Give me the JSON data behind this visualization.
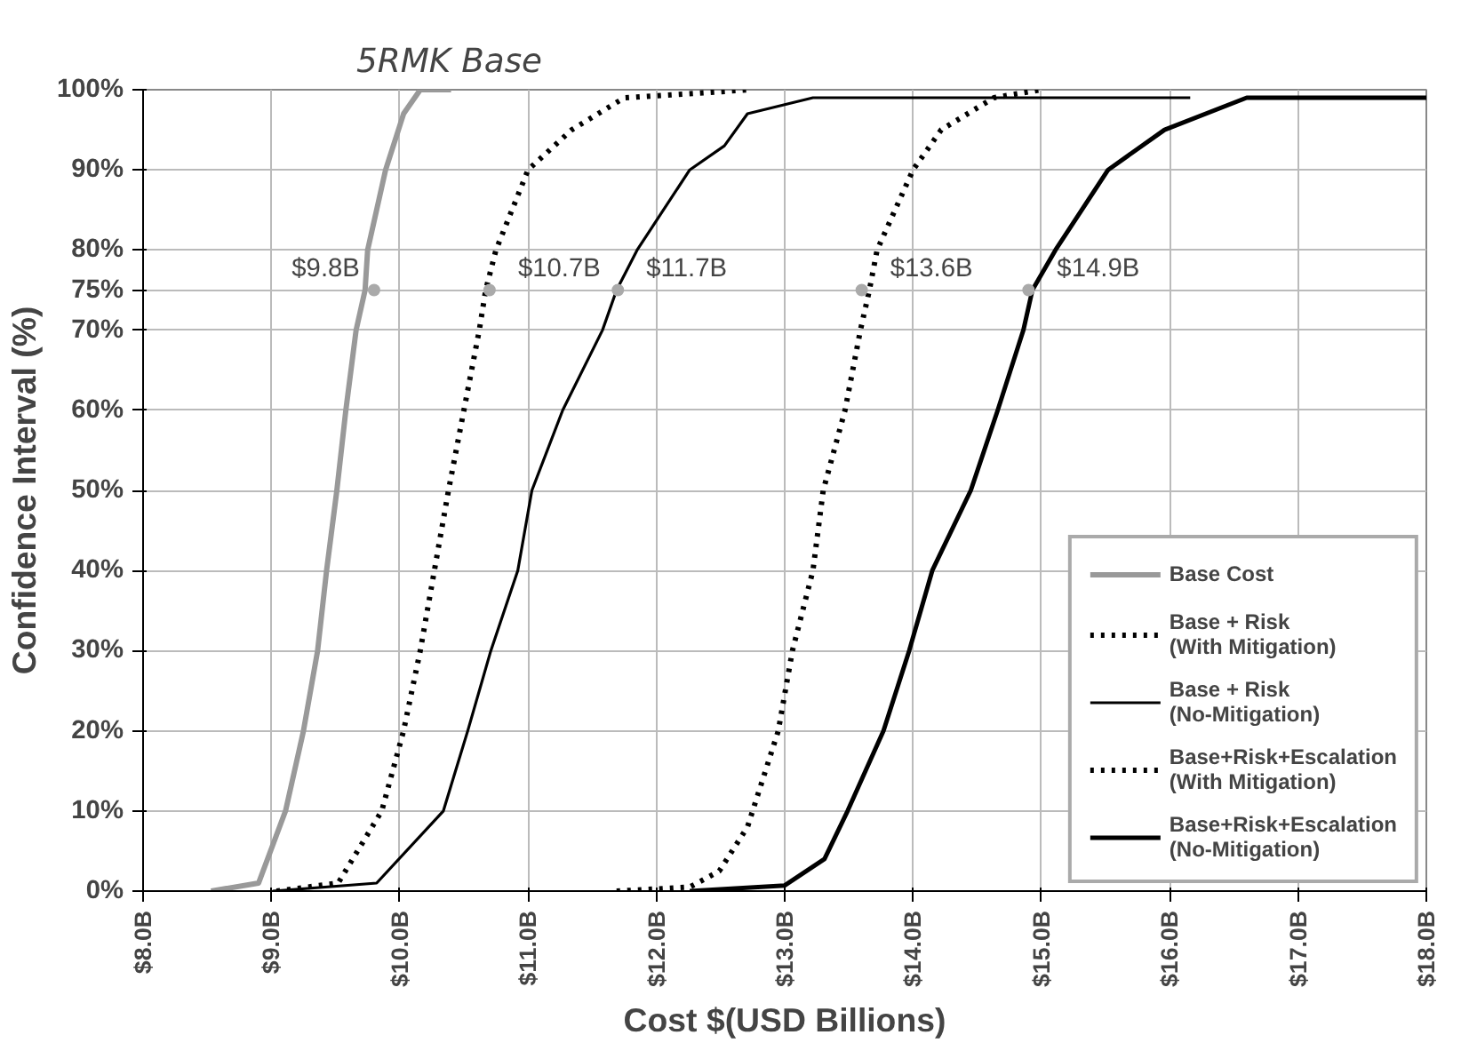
{
  "chart_data": {
    "type": "line",
    "xlabel": "Cost $(USD Billions)",
    "ylabel": "Confidence Interval (%)",
    "xlim": [
      8.0,
      18.0
    ],
    "ylim": [
      0,
      100
    ],
    "xticks": [
      {
        "value": 8,
        "label": "$8.0B"
      },
      {
        "value": 9,
        "label": "$9.0B"
      },
      {
        "value": 10,
        "label": "$10.0B"
      },
      {
        "value": 11,
        "label": "$11.0B"
      },
      {
        "value": 12,
        "label": "$12.0B"
      },
      {
        "value": 13,
        "label": "$13.0B"
      },
      {
        "value": 14,
        "label": "$14.0B"
      },
      {
        "value": 15,
        "label": "$15.0B"
      },
      {
        "value": 16,
        "label": "$16.0B"
      },
      {
        "value": 17,
        "label": "$17.0B"
      },
      {
        "value": 18,
        "label": "$18.0B"
      }
    ],
    "yticks": [
      {
        "value": 0,
        "label": "0%"
      },
      {
        "value": 10,
        "label": "10%"
      },
      {
        "value": 20,
        "label": "20%"
      },
      {
        "value": 30,
        "label": "30%"
      },
      {
        "value": 40,
        "label": "40%"
      },
      {
        "value": 50,
        "label": "50%"
      },
      {
        "value": 60,
        "label": "60%"
      },
      {
        "value": 70,
        "label": "70%"
      },
      {
        "value": 75,
        "label": "75%"
      },
      {
        "value": 80,
        "label": "80%"
      },
      {
        "value": 90,
        "label": "90%"
      },
      {
        "value": 100,
        "label": "100%"
      }
    ],
    "grid": true,
    "legend": "bottom right",
    "marker": "none",
    "series": [
      {
        "name": "Base Cost",
        "color": "#999999",
        "line_style": "solid",
        "x": [
          8.53,
          8.9,
          9.11,
          9.25,
          9.36,
          9.43,
          9.51,
          9.58,
          9.66,
          9.73,
          9.75,
          9.89,
          10.03,
          10.16,
          10.4
        ],
        "values": [
          0,
          1,
          10,
          20,
          30,
          40,
          50,
          60,
          70,
          75,
          80,
          90,
          97,
          100,
          100
        ]
      },
      {
        "name": "Base + Risk\n(With Mitigation)",
        "color": "#000000",
        "line_style": "dotted",
        "x": [
          9.04,
          9.52,
          9.86,
          10.03,
          10.16,
          10.27,
          10.38,
          10.5,
          10.62,
          10.67,
          10.75,
          11.0,
          11.34,
          11.75,
          12.74
        ],
        "values": [
          0,
          1,
          10,
          20,
          30,
          40,
          50,
          60,
          70,
          75,
          80,
          90,
          95,
          99,
          100
        ]
      },
      {
        "name": "Base + Risk\n(No-Mitigation)",
        "color": "#000000",
        "line_style": "solid",
        "x": [
          9.01,
          9.82,
          10.34,
          10.53,
          10.71,
          10.92,
          11.03,
          11.27,
          11.58,
          11.69,
          11.85,
          12.26,
          12.53,
          12.71,
          13.22,
          16.16
        ],
        "values": [
          0,
          1,
          10,
          20,
          30,
          40,
          50,
          60,
          70,
          75,
          80,
          90,
          93,
          97,
          99,
          99
        ]
      },
      {
        "name": "Base+Risk+Escalation\n(With Mitigation)",
        "color": "#000000",
        "line_style": "dotted",
        "x": [
          11.69,
          12.26,
          12.49,
          12.71,
          12.95,
          13.06,
          13.22,
          13.3,
          13.47,
          13.59,
          13.66,
          13.72,
          14.0,
          14.22,
          14.63,
          15.0
        ],
        "values": [
          0,
          0.5,
          2.5,
          8,
          20,
          30,
          40,
          50,
          60,
          70,
          75,
          80,
          90,
          95,
          99,
          100
        ]
      },
      {
        "name": "Base+Risk+Escalation\n(No-Mitigation)",
        "color": "#000000",
        "line_style": "solid",
        "x": [
          12.26,
          13.0,
          13.31,
          13.49,
          13.77,
          13.97,
          14.15,
          14.45,
          14.66,
          14.86,
          14.93,
          15.11,
          15.52,
          15.96,
          16.6,
          16.82,
          18.0
        ],
        "values": [
          0,
          0.7,
          4,
          10,
          20,
          30,
          40,
          50,
          60,
          70,
          75,
          80,
          90,
          95,
          99,
          99,
          99
        ]
      }
    ],
    "annotations": [
      {
        "text": "$9.8B",
        "x": 9.8,
        "y": 75
      },
      {
        "text": "$10.7B",
        "x": 10.7,
        "y": 75
      },
      {
        "text": "$11.7B",
        "x": 11.7,
        "y": 75
      },
      {
        "text": "$13.6B",
        "x": 13.6,
        "y": 75
      },
      {
        "text": "$14.9B",
        "x": 14.9,
        "y": 75
      },
      "5RMK Base"
    ]
  }
}
